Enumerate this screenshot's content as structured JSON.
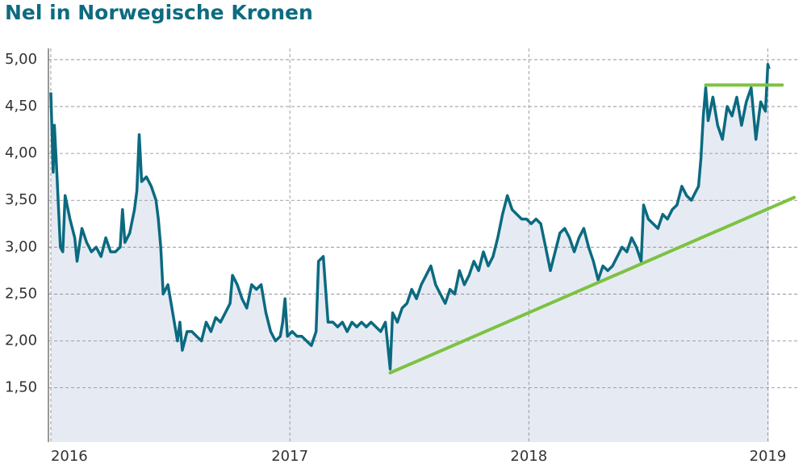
{
  "chart_data": {
    "type": "line",
    "title": "Nel in Norwegische Kronen",
    "x": [
      2016.0,
      2016.01,
      2016.015,
      2016.025,
      2016.04,
      2016.05,
      2016.06,
      2016.08,
      2016.1,
      2016.11,
      2016.13,
      2016.15,
      2016.17,
      2016.19,
      2016.21,
      2016.23,
      2016.25,
      2016.27,
      2016.29,
      2016.3,
      2016.31,
      2016.33,
      2016.35,
      2016.36,
      2016.37,
      2016.38,
      2016.4,
      2016.42,
      2016.44,
      2016.45,
      2016.46,
      2016.47,
      2016.49,
      2016.51,
      2016.53,
      2016.54,
      2016.55,
      2016.57,
      2016.59,
      2016.61,
      2016.63,
      2016.65,
      2016.67,
      2016.69,
      2016.71,
      2016.73,
      2016.75,
      2016.76,
      2016.78,
      2016.8,
      2016.82,
      2016.84,
      2016.86,
      2016.88,
      2016.9,
      2016.92,
      2016.94,
      2016.96,
      2016.97,
      2016.98,
      2016.99,
      2017.01,
      2017.03,
      2017.05,
      2017.07,
      2017.09,
      2017.11,
      2017.12,
      2017.14,
      2017.16,
      2017.18,
      2017.2,
      2017.22,
      2017.24,
      2017.26,
      2017.28,
      2017.3,
      2017.32,
      2017.34,
      2017.36,
      2017.38,
      2017.4,
      2017.42,
      2017.43,
      2017.45,
      2017.47,
      2017.49,
      2017.51,
      2017.53,
      2017.55,
      2017.57,
      2017.59,
      2017.61,
      2017.63,
      2017.65,
      2017.67,
      2017.69,
      2017.71,
      2017.73,
      2017.75,
      2017.77,
      2017.79,
      2017.81,
      2017.83,
      2017.85,
      2017.87,
      2017.89,
      2017.91,
      2017.93,
      2017.95,
      2017.97,
      2017.99,
      2018.01,
      2018.03,
      2018.05,
      2018.07,
      2018.09,
      2018.11,
      2018.13,
      2018.15,
      2018.17,
      2018.19,
      2018.21,
      2018.23,
      2018.25,
      2018.27,
      2018.29,
      2018.31,
      2018.33,
      2018.35,
      2018.37,
      2018.39,
      2018.41,
      2018.43,
      2018.45,
      2018.47,
      2018.48,
      2018.5,
      2018.52,
      2018.54,
      2018.56,
      2018.58,
      2018.6,
      2018.62,
      2018.64,
      2018.66,
      2018.68,
      2018.7,
      2018.71,
      2018.72,
      2018.73,
      2018.74,
      2018.75,
      2018.77,
      2018.79,
      2018.81,
      2018.83,
      2018.85,
      2018.87,
      2018.89,
      2018.91,
      2018.93,
      2018.95,
      2018.97,
      2018.99,
      2019.0,
      2019.005
    ],
    "series": [
      {
        "color": "#0b6a80",
        "values": [
          4.65,
          3.8,
          4.3,
          3.8,
          3.0,
          2.95,
          3.55,
          3.3,
          3.1,
          2.85,
          3.2,
          3.05,
          2.95,
          3.0,
          2.9,
          3.1,
          2.95,
          2.95,
          3.0,
          3.4,
          3.05,
          3.15,
          3.4,
          3.6,
          4.2,
          3.7,
          3.75,
          3.65,
          3.5,
          3.3,
          3.0,
          2.5,
          2.6,
          2.3,
          2.0,
          2.2,
          1.9,
          2.1,
          2.1,
          2.05,
          2.0,
          2.2,
          2.1,
          2.25,
          2.2,
          2.3,
          2.4,
          2.7,
          2.6,
          2.45,
          2.35,
          2.6,
          2.55,
          2.6,
          2.3,
          2.1,
          2.0,
          2.05,
          2.2,
          2.45,
          2.05,
          2.1,
          2.05,
          2.05,
          2.0,
          1.95,
          2.1,
          2.85,
          2.9,
          2.2,
          2.2,
          2.15,
          2.2,
          2.1,
          2.2,
          2.15,
          2.2,
          2.15,
          2.2,
          2.15,
          2.1,
          2.2,
          1.7,
          2.3,
          2.2,
          2.35,
          2.4,
          2.55,
          2.45,
          2.6,
          2.7,
          2.8,
          2.6,
          2.5,
          2.4,
          2.55,
          2.5,
          2.75,
          2.6,
          2.7,
          2.85,
          2.75,
          2.95,
          2.8,
          2.9,
          3.1,
          3.35,
          3.55,
          3.4,
          3.35,
          3.3,
          3.3,
          3.25,
          3.3,
          3.25,
          3.0,
          2.75,
          2.95,
          3.15,
          3.2,
          3.1,
          2.95,
          3.1,
          3.2,
          3.0,
          2.85,
          2.65,
          2.8,
          2.75,
          2.8,
          2.9,
          3.0,
          2.95,
          3.1,
          3.0,
          2.85,
          3.45,
          3.3,
          3.25,
          3.2,
          3.35,
          3.3,
          3.4,
          3.45,
          3.65,
          3.55,
          3.5,
          3.6,
          3.65,
          3.95,
          4.4,
          4.7,
          4.35,
          4.6,
          4.3,
          4.15,
          4.5,
          4.4,
          4.6,
          4.3,
          4.55,
          4.7,
          4.15,
          4.55,
          4.45,
          4.95,
          4.9
        ]
      }
    ],
    "trend_lines": [
      {
        "color": "#7dc242",
        "x": [
          2017.42,
          2019.11
        ],
        "y": [
          1.66,
          3.53
        ]
      },
      {
        "color": "#7dc242",
        "x": [
          2018.74,
          2019.06
        ],
        "y": [
          4.73,
          4.73
        ]
      }
    ],
    "xlim": [
      2015.99,
      2019.13
    ],
    "xticks": [
      2016,
      2017,
      2018,
      2019
    ],
    "ylim": [
      0.92,
      5.12
    ],
    "yticks": [
      {
        "value": 1.5,
        "label": "1,50"
      },
      {
        "value": 2,
        "label": "2,00"
      },
      {
        "value": 2.5,
        "label": "2,50"
      },
      {
        "value": 3,
        "label": "3,00"
      },
      {
        "value": 3.5,
        "label": "3,50"
      },
      {
        "value": 4,
        "label": "4,00"
      },
      {
        "value": 4.5,
        "label": "4,50"
      },
      {
        "value": 5,
        "label": "5,00"
      }
    ],
    "grid": true
  }
}
